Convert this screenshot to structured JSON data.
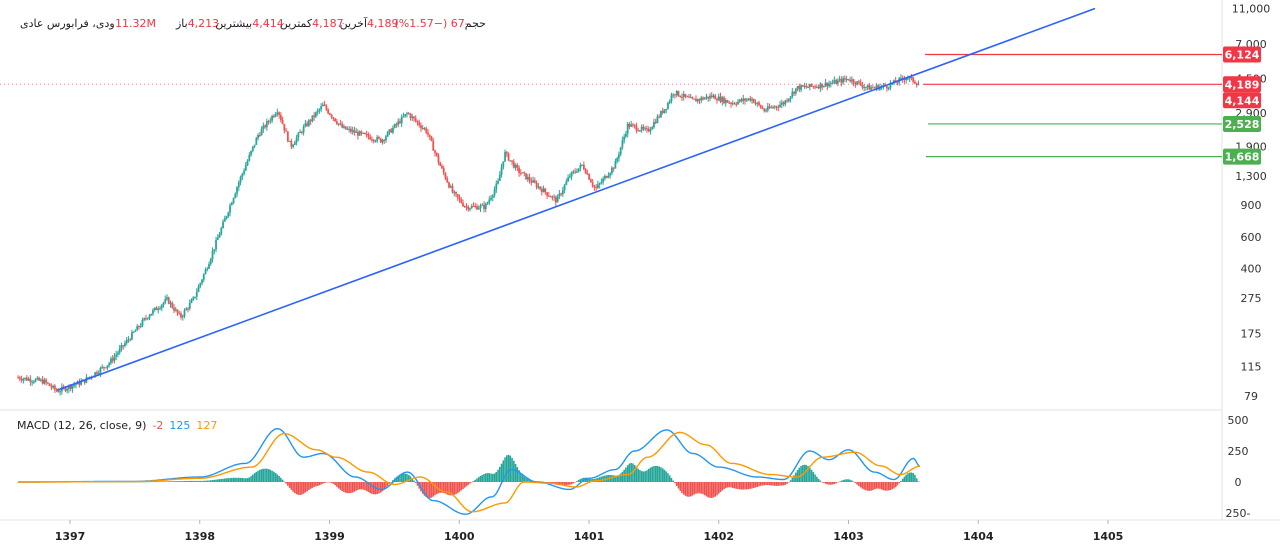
{
  "header": {
    "symbol": "ودی، فرابورس عادی",
    "open_label": "باز",
    "open_value": "4,213",
    "high_label": "بیشترین",
    "high_value": "4,414",
    "low_label": "کمترین",
    "low_value": "4,187",
    "close_label": "آخرین",
    "close_value": "4,189",
    "change": "-67 (−1.57%)",
    "volume_label": "حجم",
    "volume_value": "11.32M"
  },
  "macd": {
    "label": "MACD (12, 26, close, 9)",
    "hist_value": "-2",
    "macd_value": "125",
    "signal_value": "127"
  },
  "colors": {
    "up": "#26a69a",
    "down": "#ef5350",
    "trendline": "#2962ff",
    "macd_line": "#2196f3",
    "signal_line": "#ff9800",
    "price_red": "#f23645",
    "price_green": "#4caf50"
  },
  "chart_data": {
    "type": "candlestick",
    "y_scale": "log",
    "x_ticks": [
      "1397",
      "1398",
      "1399",
      "1400",
      "1401",
      "1402",
      "1403",
      "1404",
      "1405"
    ],
    "y_ticks": [
      "11,000",
      "7,000",
      "4,500",
      "2,900",
      "1,900",
      "1,300",
      "900",
      "600",
      "400",
      "275",
      "175",
      "115",
      "79"
    ],
    "macd_y_ticks": [
      "500",
      "250",
      "0",
      "-250"
    ],
    "price_lines": [
      {
        "label": "6,124",
        "value": 6124,
        "color": "#f23645"
      },
      {
        "label": "4,189",
        "value": 4189,
        "color": "#f23645"
      },
      {
        "label": "4,144",
        "value": 4144,
        "color": "#f23645"
      },
      {
        "label": "2,528",
        "value": 2528,
        "color": "#4caf50"
      },
      {
        "label": "1,668",
        "value": 1668,
        "color": "#4caf50"
      }
    ],
    "trendline": [
      {
        "x": "1396.9",
        "y": 85
      },
      {
        "x": "1404.9",
        "y": 11000
      }
    ],
    "price_path": [
      [
        1396.6,
        100
      ],
      [
        1396.8,
        95
      ],
      [
        1396.9,
        84
      ],
      [
        1397.1,
        95
      ],
      [
        1397.3,
        120
      ],
      [
        1397.5,
        180
      ],
      [
        1397.6,
        220
      ],
      [
        1397.75,
        270
      ],
      [
        1397.85,
        215
      ],
      [
        1397.95,
        270
      ],
      [
        1398.05,
        400
      ],
      [
        1398.15,
        620
      ],
      [
        1398.3,
        1200
      ],
      [
        1398.45,
        2200
      ],
      [
        1398.6,
        3050
      ],
      [
        1398.7,
        1900
      ],
      [
        1398.8,
        2400
      ],
      [
        1398.95,
        3200
      ],
      [
        1399.1,
        2400
      ],
      [
        1399.25,
        2200
      ],
      [
        1399.4,
        2050
      ],
      [
        1399.6,
        2900
      ],
      [
        1399.75,
        2300
      ],
      [
        1399.85,
        1500
      ],
      [
        1399.95,
        1050
      ],
      [
        1400.05,
        880
      ],
      [
        1400.2,
        880
      ],
      [
        1400.3,
        1200
      ],
      [
        1400.35,
        1750
      ],
      [
        1400.45,
        1400
      ],
      [
        1400.6,
        1150
      ],
      [
        1400.75,
        950
      ],
      [
        1400.85,
        1300
      ],
      [
        1400.95,
        1500
      ],
      [
        1401.05,
        1100
      ],
      [
        1401.2,
        1500
      ],
      [
        1401.3,
        2500
      ],
      [
        1401.45,
        2300
      ],
      [
        1401.6,
        3200
      ],
      [
        1401.65,
        3800
      ],
      [
        1401.8,
        3400
      ],
      [
        1401.95,
        3600
      ],
      [
        1402.1,
        3300
      ],
      [
        1402.25,
        3500
      ],
      [
        1402.35,
        3000
      ],
      [
        1402.5,
        3300
      ],
      [
        1402.6,
        4000
      ],
      [
        1402.75,
        4100
      ],
      [
        1402.9,
        4300
      ],
      [
        1403.0,
        4500
      ],
      [
        1403.15,
        4000
      ],
      [
        1403.3,
        4100
      ],
      [
        1403.45,
        4600
      ],
      [
        1403.55,
        4189
      ]
    ],
    "macd_path": [
      [
        1396.6,
        0
      ],
      [
        1397.5,
        5
      ],
      [
        1398.0,
        40
      ],
      [
        1398.35,
        150
      ],
      [
        1398.6,
        430
      ],
      [
        1398.8,
        200
      ],
      [
        1398.95,
        230
      ],
      [
        1399.2,
        40
      ],
      [
        1399.4,
        -60
      ],
      [
        1399.6,
        80
      ],
      [
        1399.8,
        -150
      ],
      [
        1400.05,
        -260
      ],
      [
        1400.25,
        -120
      ],
      [
        1400.4,
        100
      ],
      [
        1400.6,
        0
      ],
      [
        1400.85,
        -60
      ],
      [
        1401.0,
        30
      ],
      [
        1401.2,
        100
      ],
      [
        1401.35,
        250
      ],
      [
        1401.6,
        420
      ],
      [
        1401.8,
        230
      ],
      [
        1402.0,
        120
      ],
      [
        1402.3,
        40
      ],
      [
        1402.5,
        20
      ],
      [
        1402.7,
        250
      ],
      [
        1402.85,
        180
      ],
      [
        1403.0,
        260
      ],
      [
        1403.2,
        80
      ],
      [
        1403.35,
        20
      ],
      [
        1403.5,
        190
      ],
      [
        1403.55,
        125
      ]
    ],
    "signal_path": [
      [
        1396.6,
        0
      ],
      [
        1397.5,
        3
      ],
      [
        1398.0,
        30
      ],
      [
        1398.4,
        120
      ],
      [
        1398.65,
        390
      ],
      [
        1398.9,
        260
      ],
      [
        1399.05,
        200
      ],
      [
        1399.3,
        80
      ],
      [
        1399.5,
        -20
      ],
      [
        1399.7,
        40
      ],
      [
        1399.9,
        -80
      ],
      [
        1400.1,
        -240
      ],
      [
        1400.35,
        -170
      ],
      [
        1400.5,
        0
      ],
      [
        1400.7,
        -10
      ],
      [
        1400.9,
        -40
      ],
      [
        1401.05,
        10
      ],
      [
        1401.3,
        60
      ],
      [
        1401.45,
        200
      ],
      [
        1401.7,
        400
      ],
      [
        1401.9,
        300
      ],
      [
        1402.1,
        150
      ],
      [
        1402.4,
        60
      ],
      [
        1402.6,
        40
      ],
      [
        1402.8,
        200
      ],
      [
        1403.05,
        240
      ],
      [
        1403.25,
        130
      ],
      [
        1403.4,
        60
      ],
      [
        1403.55,
        127
      ]
    ]
  }
}
